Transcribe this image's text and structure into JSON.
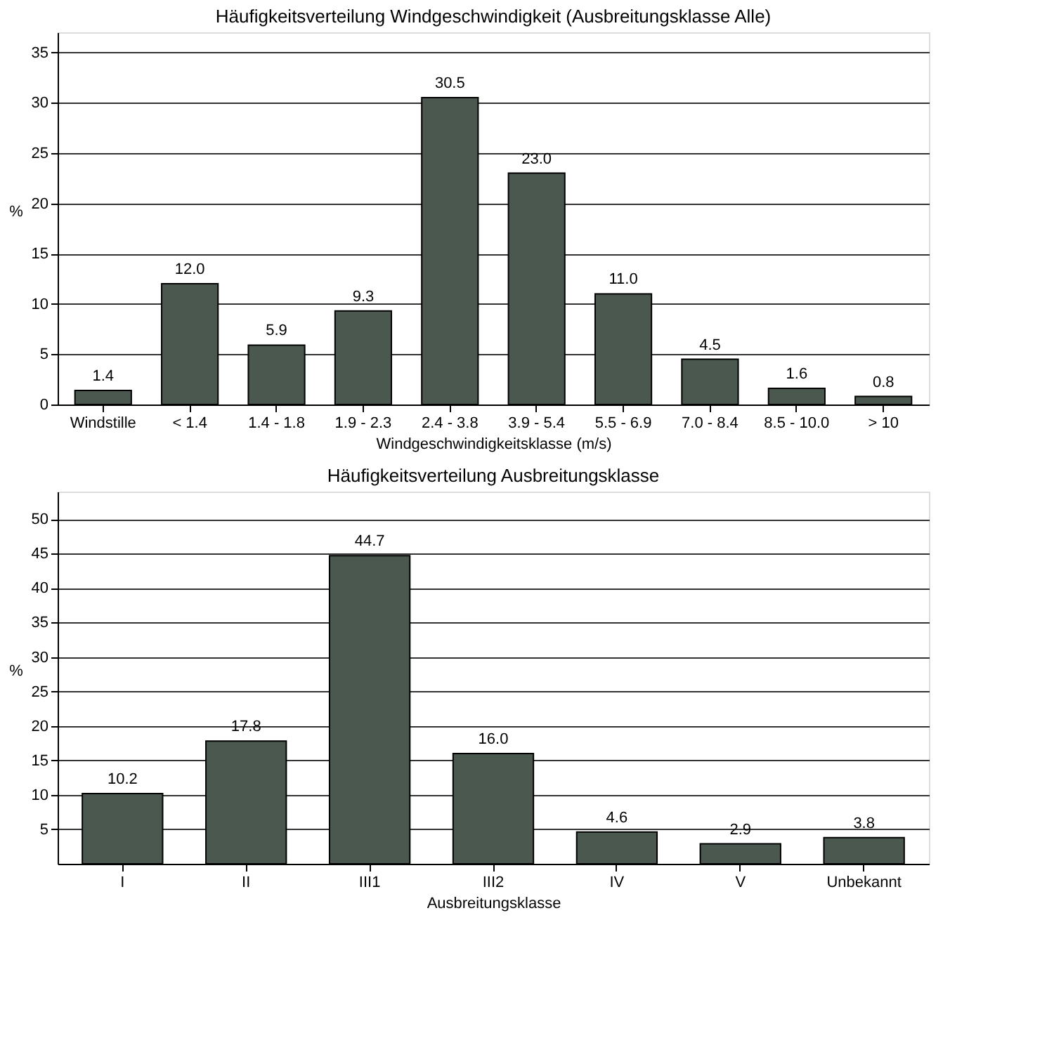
{
  "chart_data": [
    {
      "type": "bar",
      "title": "Häufigkeitsverteilung Windgeschwindigkeit (Ausbreitungsklasse Alle)",
      "xlabel": "Windgeschwindigkeitsklasse (m/s)",
      "ylabel": "%",
      "categories": [
        "Windstille",
        "< 1.4",
        "1.4 - 1.8",
        "1.9 - 2.3",
        "2.4 - 3.8",
        "3.9 - 5.4",
        "5.5 - 6.9",
        "7.0 - 8.4",
        "8.5 - 10.0",
        "> 10"
      ],
      "values": [
        1.4,
        12.0,
        5.9,
        9.3,
        30.5,
        23.0,
        11.0,
        4.5,
        1.6,
        0.8
      ],
      "value_labels": [
        "1.4",
        "12.0",
        "5.9",
        "9.3",
        "30.5",
        "23.0",
        "11.0",
        "4.5",
        "1.6",
        "0.8"
      ],
      "color": "#4b5850",
      "ylim": [
        0,
        37
      ],
      "yticks": [
        0,
        5,
        10,
        15,
        20,
        25,
        30,
        35
      ],
      "grid": "y"
    },
    {
      "type": "bar",
      "title": "Häufigkeitsverteilung Ausbreitungsklasse",
      "xlabel": "Ausbreitungsklasse",
      "ylabel": "%",
      "categories": [
        "I",
        "II",
        "III1",
        "III2",
        "IV",
        "V",
        "Unbekannt"
      ],
      "values": [
        10.2,
        17.8,
        44.7,
        16.0,
        4.6,
        2.9,
        3.8
      ],
      "value_labels": [
        "10.2",
        "17.8",
        "44.7",
        "16.0",
        "4.6",
        "2.9",
        "3.8"
      ],
      "color": "#4b5850",
      "ylim": [
        0,
        54
      ],
      "yticks": [
        5,
        10,
        15,
        20,
        25,
        30,
        35,
        40,
        45,
        50
      ],
      "grid": "y"
    }
  ]
}
